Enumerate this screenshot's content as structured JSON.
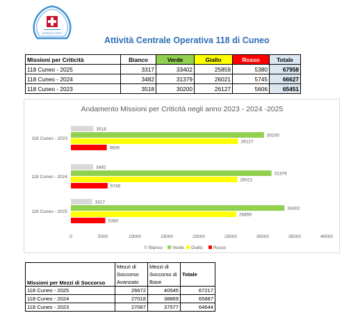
{
  "logo": {
    "text": "AZIENDA ZERO"
  },
  "page_title": "Attività Centrale Operativa 118 di Cuneo",
  "criticita_table": {
    "headers": [
      "Missioni per Criticità",
      "Bianco",
      "Verde",
      "Giallo",
      "Rosso",
      "Totale"
    ],
    "rows": [
      [
        "118 Cuneo - 2025",
        "3317",
        "33402",
        "25859",
        "5380",
        "67958"
      ],
      [
        "118 Cuneo - 2024",
        "3482",
        "31379",
        "26021",
        "5745",
        "66627"
      ],
      [
        "118 Cuneo - 2023",
        "3518",
        "30200",
        "26127",
        "5606",
        "65451"
      ]
    ],
    "colors": {
      "verde": "#92d050",
      "giallo": "#ffff00",
      "rosso": "#ff0000",
      "totale": "#dce6f1"
    }
  },
  "chart_data": {
    "type": "bar",
    "orientation": "horizontal",
    "title": "Andamento Missioni per Criticità negli anno 2023 - 2024 -2025",
    "categories": [
      "118 Cuneo - 2023",
      "118 Cuneo - 2024",
      "118 Cuneo - 2025"
    ],
    "series": [
      {
        "name": "Bianco",
        "color": "#d9d9d9",
        "values": [
          3518,
          3482,
          3317
        ]
      },
      {
        "name": "Verde",
        "color": "#92d050",
        "values": [
          30200,
          31379,
          33402
        ]
      },
      {
        "name": "Giallo",
        "color": "#ffff00",
        "values": [
          26127,
          26021,
          25859
        ]
      },
      {
        "name": "Rosso",
        "color": "#ff0000",
        "values": [
          5606,
          5745,
          5380
        ]
      }
    ],
    "xlim": [
      0,
      40000
    ],
    "xticks": [
      "0",
      "5000",
      "10000",
      "15000",
      "20000",
      "25000",
      "30000",
      "35000",
      "40000"
    ],
    "grid": false,
    "legend": "bottom"
  },
  "mezzi_table": {
    "headers": [
      "Missioni per Mezzi di Soccorso",
      "Mezzi di Soccorso Avanzato",
      "Mezzi di Soccorso di Base",
      "Totale"
    ],
    "rows": [
      [
        "118 Cuneo - 2025",
        "26672",
        "40545",
        "67217"
      ],
      [
        "118 Cuneo - 2024",
        "27018",
        "38869",
        "65887"
      ],
      [
        "118 Cuneo - 2023",
        "27067",
        "37577",
        "64644"
      ]
    ]
  }
}
